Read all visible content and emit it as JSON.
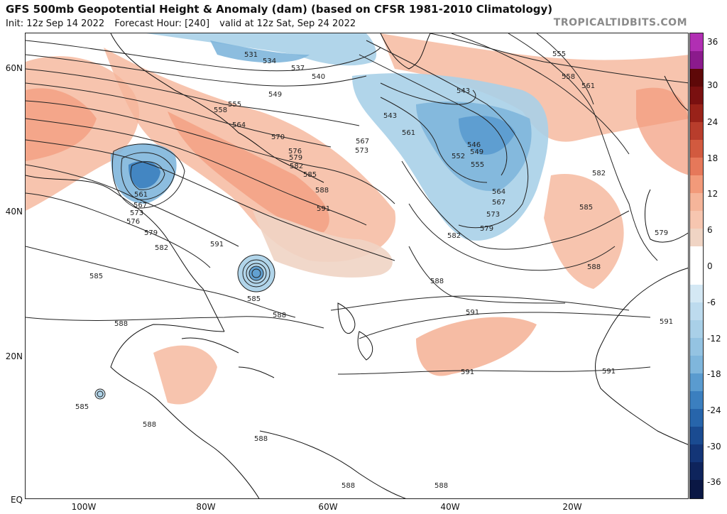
{
  "header": {
    "title": "GFS 500mb Geopotential Height & Anomaly (dam) (based on CFSR 1981-2010 Climatology)",
    "init": "Init: 12z Sep 14 2022",
    "forecast_hour": "Forecast Hour: [240]",
    "valid": "valid at 12z Sat, Sep 24 2022",
    "brand": "TROPICALTIDBITS.COM"
  },
  "axes": {
    "lat_labels": [
      "60N",
      "40N",
      "20N",
      "EQ"
    ],
    "lon_labels": [
      "100W",
      "80W",
      "60W",
      "40W",
      "20W"
    ]
  },
  "colorbar": {
    "labels": [
      "36",
      "30",
      "24",
      "18",
      "12",
      "6",
      "0",
      "-6",
      "-12",
      "-18",
      "-24",
      "-30",
      "-36"
    ],
    "colors": [
      "#ffffff",
      "#f0d4c4",
      "#f5b59a",
      "#f29a7a",
      "#e6785a",
      "#d25a3f",
      "#b83d2c",
      "#992219",
      "#7a1010",
      "#5e0808",
      "#8b1a8c",
      "#b12fb3"
    ],
    "neg_colors": [
      "#d4e8f4",
      "#a9d0e8",
      "#7fb6dc",
      "#5a9bcf",
      "#3b7fbf",
      "#2765ab",
      "#1a4b91",
      "#133577",
      "#0e245c"
    ]
  },
  "contours": {
    "labels": [
      "531",
      "534",
      "537",
      "540",
      "543",
      "543",
      "546",
      "549",
      "552",
      "555",
      "549",
      "555",
      "558",
      "561",
      "564",
      "567",
      "570",
      "573",
      "576",
      "579",
      "582",
      "585",
      "588",
      "591",
      "561",
      "567",
      "573",
      "576",
      "579",
      "582",
      "585",
      "585",
      "588",
      "588",
      "591",
      "591",
      "591",
      "555",
      "558",
      "561",
      "564",
      "567",
      "573",
      "579",
      "582",
      "582",
      "585",
      "588",
      "588",
      "591",
      "591",
      "579",
      "585",
      "588",
      "588",
      "588",
      "588"
    ]
  }
}
